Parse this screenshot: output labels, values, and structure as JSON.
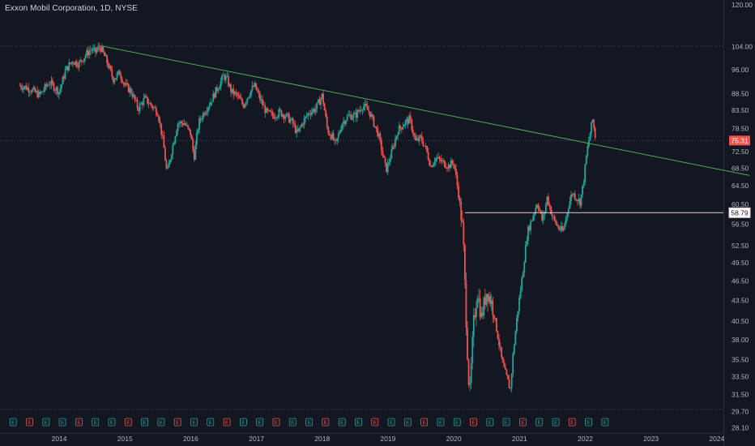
{
  "chart_data": {
    "type": "candlestick",
    "title": "Exxon Mobil Corporation, 1D, NYSE",
    "ylim": [
      27.6,
      122.0
    ],
    "y_scale": "log",
    "y_ticks": [
      "120.00",
      "104.00",
      "96.00",
      "88.50",
      "83.50",
      "78.50",
      "72.50",
      "68.50",
      "64.50",
      "60.50",
      "56.50",
      "52.50",
      "49.50",
      "46.50",
      "43.50",
      "40.50",
      "38.00",
      "35.50",
      "33.50",
      "31.50",
      "29.70",
      "28.10"
    ],
    "x_ticks": [
      "2014",
      "2015",
      "2016",
      "2017",
      "2018",
      "2019",
      "2020",
      "2021",
      "2022",
      "2023",
      "2024"
    ],
    "grid": false,
    "colors": {
      "background": "#131722",
      "up": "#26a69a",
      "down": "#ef5350",
      "trendline": "#4caf50",
      "support": "#f3c6cc",
      "dotted_level": "#3e4a63",
      "price_badge": "#ef5350"
    },
    "price_path": [
      [
        2013.4,
        91.0
      ],
      [
        2013.55,
        90.0
      ],
      [
        2013.7,
        88.0
      ],
      [
        2013.85,
        92.0
      ],
      [
        2014.0,
        89.0
      ],
      [
        2014.1,
        96.0
      ],
      [
        2014.2,
        99.0
      ],
      [
        2014.3,
        98.0
      ],
      [
        2014.4,
        101.0
      ],
      [
        2014.48,
        103.0
      ],
      [
        2014.55,
        102.0
      ],
      [
        2014.62,
        104.0
      ],
      [
        2014.72,
        99.0
      ],
      [
        2014.82,
        93.0
      ],
      [
        2014.92,
        95.0
      ],
      [
        2015.0,
        91.0
      ],
      [
        2015.1,
        89.0
      ],
      [
        2015.2,
        84.0
      ],
      [
        2015.3,
        87.0
      ],
      [
        2015.4,
        85.0
      ],
      [
        2015.5,
        83.0
      ],
      [
        2015.58,
        75.0
      ],
      [
        2015.64,
        67.0
      ],
      [
        2015.7,
        72.0
      ],
      [
        2015.8,
        80.0
      ],
      [
        2015.9,
        80.0
      ],
      [
        2016.0,
        77.0
      ],
      [
        2016.05,
        71.0
      ],
      [
        2016.12,
        80.0
      ],
      [
        2016.2,
        83.0
      ],
      [
        2016.3,
        86.0
      ],
      [
        2016.4,
        90.0
      ],
      [
        2016.5,
        94.0
      ],
      [
        2016.55,
        93.0
      ],
      [
        2016.62,
        89.0
      ],
      [
        2016.7,
        88.0
      ],
      [
        2016.8,
        85.0
      ],
      [
        2016.9,
        89.0
      ],
      [
        2016.97,
        91.0
      ],
      [
        2017.05,
        87.0
      ],
      [
        2017.15,
        83.0
      ],
      [
        2017.25,
        82.0
      ],
      [
        2017.35,
        83.0
      ],
      [
        2017.45,
        82.0
      ],
      [
        2017.55,
        80.0
      ],
      [
        2017.62,
        77.0
      ],
      [
        2017.7,
        80.0
      ],
      [
        2017.8,
        83.0
      ],
      [
        2017.9,
        84.0
      ],
      [
        2018.0,
        88.0
      ],
      [
        2018.08,
        78.0
      ],
      [
        2018.16,
        76.0
      ],
      [
        2018.2,
        74.0
      ],
      [
        2018.3,
        80.0
      ],
      [
        2018.4,
        82.0
      ],
      [
        2018.5,
        82.0
      ],
      [
        2018.62,
        85.0
      ],
      [
        2018.72,
        83.0
      ],
      [
        2018.85,
        77.0
      ],
      [
        2018.93,
        71.0
      ],
      [
        2018.97,
        68.0
      ],
      [
        2019.05,
        72.0
      ],
      [
        2019.15,
        78.0
      ],
      [
        2019.25,
        80.0
      ],
      [
        2019.33,
        81.0
      ],
      [
        2019.42,
        75.0
      ],
      [
        2019.5,
        76.0
      ],
      [
        2019.58,
        73.0
      ],
      [
        2019.65,
        69.0
      ],
      [
        2019.72,
        71.0
      ],
      [
        2019.82,
        70.0
      ],
      [
        2019.92,
        69.0
      ],
      [
        2020.0,
        70.0
      ],
      [
        2020.08,
        62.0
      ],
      [
        2020.14,
        55.0
      ],
      [
        2020.2,
        38.0
      ],
      [
        2020.24,
        31.0
      ],
      [
        2020.3,
        40.0
      ],
      [
        2020.36,
        45.0
      ],
      [
        2020.42,
        41.0
      ],
      [
        2020.5,
        45.0
      ],
      [
        2020.58,
        43.0
      ],
      [
        2020.66,
        39.0
      ],
      [
        2020.74,
        35.0
      ],
      [
        2020.82,
        33.0
      ],
      [
        2020.86,
        32.0
      ],
      [
        2020.9,
        36.0
      ],
      [
        2020.96,
        41.0
      ],
      [
        2021.05,
        48.0
      ],
      [
        2021.12,
        55.0
      ],
      [
        2021.2,
        58.0
      ],
      [
        2021.27,
        61.0
      ],
      [
        2021.35,
        57.0
      ],
      [
        2021.42,
        62.0
      ],
      [
        2021.5,
        58.0
      ],
      [
        2021.58,
        56.0
      ],
      [
        2021.66,
        55.0
      ],
      [
        2021.74,
        60.0
      ],
      [
        2021.8,
        63.0
      ],
      [
        2021.86,
        62.0
      ],
      [
        2021.92,
        61.0
      ],
      [
        2021.97,
        65.0
      ],
      [
        2022.02,
        72.0
      ],
      [
        2022.07,
        77.0
      ],
      [
        2022.11,
        81.0
      ],
      [
        2022.15,
        76.5
      ]
    ],
    "annotations": {
      "trendline_points": [
        [
          2014.62,
          104.3
        ],
        [
          2024.5,
          66.8
        ]
      ],
      "support_level": 58.79,
      "support_start_x": 2020.17,
      "last_price": 75.31,
      "dotted_levels": [
        104.3,
        75.31,
        29.95
      ]
    },
    "earnings_markers": [
      2013.3,
      2013.55,
      2013.8,
      2014.05,
      2014.3,
      2014.55,
      2014.8,
      2015.05,
      2015.3,
      2015.55,
      2015.8,
      2016.05,
      2016.3,
      2016.55,
      2016.8,
      2017.05,
      2017.3,
      2017.55,
      2017.8,
      2018.05,
      2018.3,
      2018.55,
      2018.8,
      2019.05,
      2019.3,
      2019.55,
      2019.8,
      2020.05,
      2020.3,
      2020.55,
      2020.8,
      2021.05,
      2021.3,
      2021.55,
      2021.8,
      2022.05,
      2022.3
    ],
    "earnings_label": "E",
    "earnings_colors": [
      "#26a69a",
      "#ef5350"
    ]
  }
}
